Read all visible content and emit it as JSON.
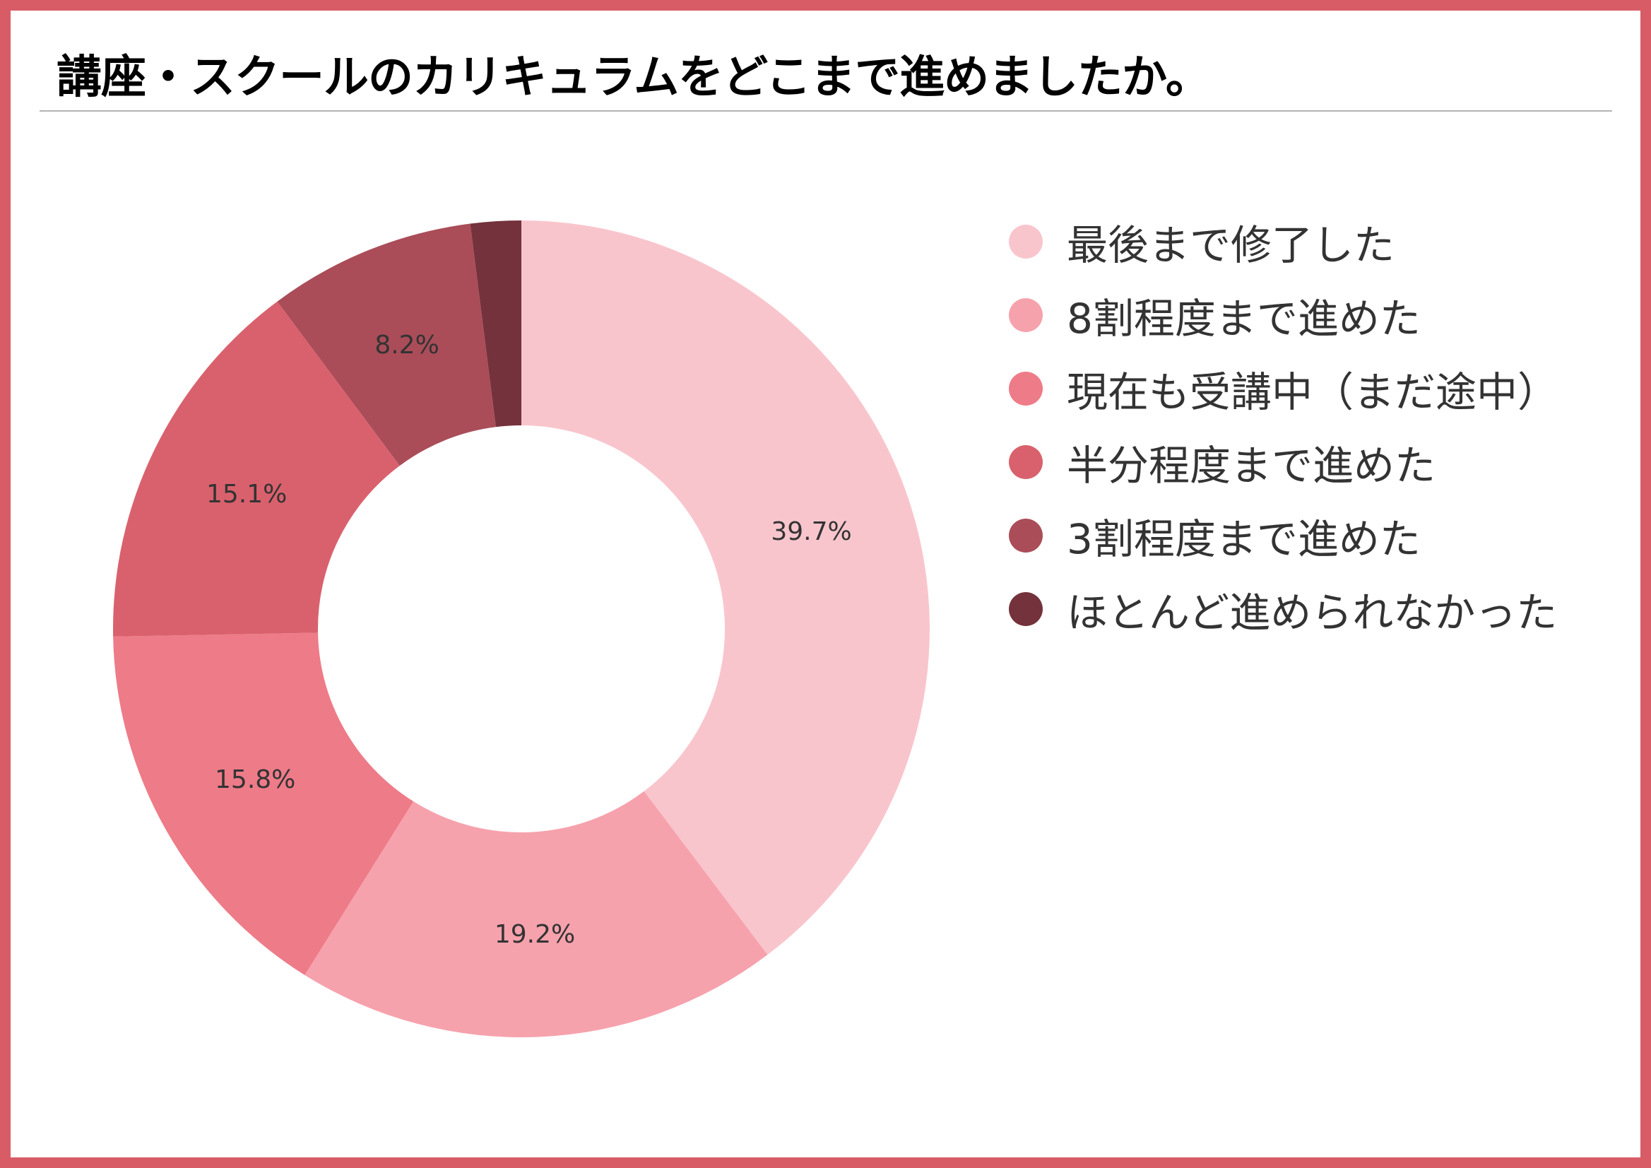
{
  "header": {
    "title": "講座・スクールのカリキュラムをどこまで進めましたか。"
  },
  "colors": {
    "frame": "#d85c66",
    "divider": "#b3b3b3"
  },
  "chart_data": {
    "type": "pie",
    "variant": "donut",
    "start_angle": "top",
    "direction": "clockwise",
    "legend_position": "right",
    "categories": [
      "最後まで修了した",
      "8割程度まで進めた",
      "現在も受講中（まだ途中）",
      "半分程度まで進めた",
      "3割程度まで進めた",
      "ほとんど進められなかった"
    ],
    "values": [
      39.7,
      19.2,
      15.8,
      15.1,
      8.2,
      2.0
    ],
    "value_labels": [
      "39.7%",
      "19.2%",
      "15.8%",
      "15.1%",
      "8.2%",
      ""
    ],
    "colors": [
      "#f9c5cd",
      "#f6a2ad",
      "#ee7b88",
      "#d9616d",
      "#aa4d59",
      "#74323c"
    ]
  }
}
